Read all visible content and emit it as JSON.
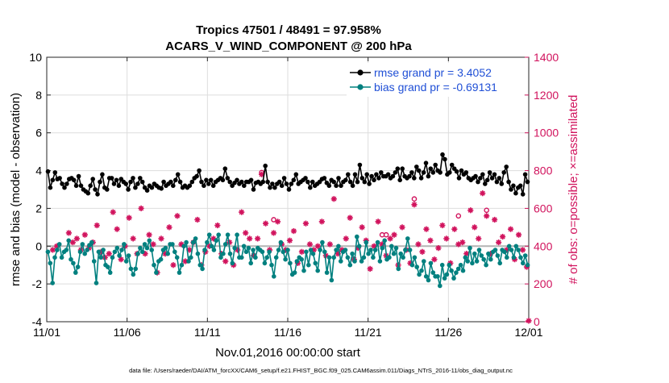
{
  "chart_data": {
    "type": "line",
    "title": "Tropics 47501 / 48491 = 97.958%",
    "subtitle": "ACARS_V_WIND_COMPONENT @ 200 hPa",
    "xlabel": "Nov.01,2016 00:00:00 start",
    "ylabel": "rmse and bias (model - observation)",
    "ylabel_right": "# of obs: o=possible; ×=assimilated",
    "footer": "data file: /Users/raeder/DAI/ATM_forcXX/CAM6_setup/f.e21.FHIST_BGC.f09_025.CAM6assim.011/Diags_NTrS_2016-11/obs_diag_output.nc",
    "xlim": [
      0,
      30
    ],
    "ylim": [
      -4,
      10
    ],
    "ylim_right": [
      0,
      1400
    ],
    "x_ticks": [
      0,
      5,
      10,
      15,
      20,
      25,
      30
    ],
    "x_tick_labels": [
      "11/01",
      "11/06",
      "11/11",
      "11/16",
      "11/21",
      "11/26",
      "12/01"
    ],
    "y_ticks": [
      -4,
      -2,
      0,
      2,
      4,
      6,
      8,
      10
    ],
    "y_tick_labels": [
      "-4",
      "-2",
      "0",
      "2",
      "4",
      "6",
      "8",
      "10"
    ],
    "y_ticks_right": [
      0,
      200,
      400,
      600,
      800,
      1000,
      1200,
      1400
    ],
    "y_tick_labels_right": [
      "0",
      "200",
      "400",
      "600",
      "800",
      "1000",
      "1200",
      "1400"
    ],
    "colors": {
      "rmse": "#000000",
      "bias": "#00807f",
      "obs": "#d1135d",
      "zero": "#b4b4b4"
    },
    "legend": {
      "position": "top-right",
      "entries": [
        {
          "label": "rmse grand pr = 3.4052",
          "color": "#1f4fd6"
        },
        {
          "label": "bias grand pr = -0.69131",
          "color": "#1f4fd6"
        }
      ]
    },
    "series": [
      {
        "name": "rmse",
        "values": [
          3.95,
          3.1,
          3.5,
          3.9,
          3.55,
          3.6,
          3.3,
          3.1,
          3.3,
          3.55,
          3.6,
          3.5,
          3.2,
          3.7,
          3.2,
          3.0,
          2.9,
          2.8,
          3.2,
          3.55,
          3.0,
          2.75,
          3.4,
          3.8,
          3.1,
          3.0,
          3.6,
          3.6,
          3.3,
          3.5,
          3.2,
          3.55,
          3.4,
          3.3,
          3.0,
          3.4,
          3.6,
          3.1,
          3.3,
          3.6,
          3.4,
          3.1,
          2.95,
          3.2,
          3.1,
          3.3,
          3.2,
          3.1,
          3.05,
          3.4,
          3.2,
          3.3,
          3.4,
          3.2,
          3.5,
          3.8,
          3.4,
          3.1,
          3.2,
          3.1,
          3.2,
          3.4,
          3.6,
          3.7,
          4.0,
          3.4,
          3.2,
          3.5,
          3.3,
          3.5,
          3.2,
          3.4,
          3.5,
          3.6,
          3.5,
          4.1,
          3.6,
          3.4,
          3.2,
          3.35,
          3.5,
          3.3,
          3.4,
          3.2,
          3.4,
          3.4,
          3.5,
          3.0,
          3.35,
          3.4,
          3.3,
          3.4,
          4.25,
          3.4,
          3.1,
          3.3,
          3.1,
          3.3,
          3.4,
          3.2,
          3.6,
          3.3,
          3.0,
          3.3,
          3.5,
          3.8,
          3.3,
          3.4,
          3.5,
          3.6,
          3.4,
          3.1,
          3.4,
          3.2,
          3.3,
          3.4,
          3.55,
          3.6,
          3.35,
          3.2,
          3.5,
          3.4,
          3.2,
          3.6,
          3.2,
          3.4,
          3.5,
          3.8,
          3.4,
          3.2,
          3.8,
          3.4,
          4.3,
          3.6,
          3.4,
          3.8,
          3.3,
          3.7,
          3.5,
          3.8,
          3.6,
          3.9,
          3.7,
          3.7,
          3.8,
          3.6,
          3.7,
          3.9,
          4.1,
          3.5,
          4.1,
          3.7,
          3.6,
          3.7,
          3.9,
          3.6,
          4.2,
          4.0,
          3.6,
          3.9,
          4.4,
          3.7,
          4.1,
          3.9,
          4.3,
          4.0,
          3.9,
          4.85,
          4.6,
          3.8,
          3.9,
          4.3,
          4.1,
          3.95,
          3.6,
          4.0,
          3.8,
          3.9,
          3.6,
          3.5,
          3.6,
          3.7,
          3.4,
          3.6,
          3.8,
          3.3,
          3.5,
          3.9,
          3.6,
          3.8,
          3.4,
          3.6,
          3.3,
          3.9,
          4.2,
          3.4,
          3.0,
          3.2,
          2.8,
          3.1,
          3.2,
          2.75,
          3.8,
          3.4
        ]
      },
      {
        "name": "bias",
        "values": [
          -0.3,
          -0.9,
          -1.95,
          -0.6,
          -0.2,
          0.1,
          -0.6,
          -0.3,
          -0.2,
          0.3,
          -0.7,
          -0.9,
          -1.4,
          -1.1,
          -0.3,
          0.1,
          -0.4,
          -0.2,
          0.05,
          0.2,
          -0.8,
          -1.95,
          -0.3,
          -0.6,
          -0.2,
          -1.0,
          -1.1,
          -1.4,
          -0.6,
          -0.3,
          -0.1,
          -0.5,
          -0.2,
          0.1,
          -0.8,
          -0.5,
          -1.2,
          -1.5,
          -1.2,
          -0.4,
          -0.1,
          -0.3,
          0.1,
          -0.1,
          0.3,
          -0.2,
          -1.0,
          -1.4,
          -0.8,
          -0.7,
          -0.2,
          -0.1,
          -0.4,
          0.1,
          0.1,
          -0.3,
          -0.6,
          -1.4,
          -1.0,
          0.0,
          0.2,
          -0.8,
          -0.6,
          0.2,
          0.4,
          -0.4,
          -1.0,
          -1.2,
          -0.2,
          0.2,
          0.6,
          0.0,
          -0.2,
          0.3,
          0.6,
          -0.6,
          -0.4,
          0.1,
          0.6,
          -0.4,
          -0.9,
          -0.1,
          0.6,
          -0.6,
          -0.6,
          0.0,
          -0.3,
          -0.1,
          -0.9,
          -0.2,
          -0.6,
          -0.1,
          -0.2,
          -0.3,
          -0.9,
          -0.6,
          -0.3,
          -1.0,
          -1.6,
          -0.6,
          -0.2,
          0.2,
          -0.3,
          -0.7,
          -0.2,
          -0.9,
          -1.5,
          -1.4,
          -0.8,
          -0.6,
          -0.7,
          -1.3,
          -0.3,
          -1.0,
          -0.2,
          -0.4,
          -0.9,
          -1.3,
          -0.2,
          0.2,
          -0.3,
          -1.4,
          -0.6,
          -1.8,
          -0.6,
          -0.2,
          0.0,
          -0.8,
          -0.3,
          -0.2,
          -0.6,
          -1.0,
          -0.4,
          -0.8,
          0.5,
          0.0,
          -0.8,
          -0.6,
          0.2,
          -0.4,
          -0.2,
          -0.6,
          -0.2,
          0.2,
          -0.8,
          -0.1,
          0.3,
          -0.7,
          -0.6,
          0.0,
          -0.4,
          -0.1,
          -1.2,
          -0.4,
          -0.6,
          -0.2,
          0.4,
          -0.2,
          -1.0,
          -0.6,
          -1.1,
          -1.5,
          -1.3,
          -0.8,
          -1.6,
          -1.8,
          -0.9,
          -1.4,
          -1.6,
          -1.6,
          -2.1,
          -1.0,
          -1.7,
          -1.5,
          -1.0,
          -1.3,
          -1.7,
          -1.4,
          -1.2,
          -1.0,
          -1.3,
          -0.6,
          -0.8,
          -0.1,
          -0.9,
          -0.4,
          -0.8,
          -0.2,
          -0.5,
          -0.7,
          -1.0,
          -0.4,
          -0.7,
          -0.3,
          -0.2,
          -0.5,
          -0.9,
          -0.2,
          -0.3,
          -0.6,
          0.0,
          -0.2,
          -0.6,
          0.0,
          -0.2,
          -0.6,
          -0.9,
          -0.5,
          -1.0
        ]
      },
      {
        "name": "obs_assimilated",
        "points": [
          [
            0.375,
            380
          ],
          [
            0.625,
            400
          ],
          [
            1.375,
            470
          ],
          [
            1.625,
            420
          ],
          [
            1.875,
            440
          ],
          [
            2.125,
            380
          ],
          [
            2.375,
            460
          ],
          [
            2.625,
            390
          ],
          [
            2.875,
            420
          ],
          [
            3.125,
            510
          ],
          [
            3.375,
            370
          ],
          [
            3.625,
            340
          ],
          [
            3.875,
            360
          ],
          [
            4.125,
            580
          ],
          [
            4.375,
            490
          ],
          [
            4.625,
            330
          ],
          [
            4.875,
            400
          ],
          [
            5.125,
            550
          ],
          [
            5.375,
            440
          ],
          [
            5.625,
            360
          ],
          [
            5.875,
            600
          ],
          [
            6.125,
            360
          ],
          [
            6.375,
            460
          ],
          [
            6.625,
            410
          ],
          [
            6.875,
            260
          ],
          [
            7.125,
            440
          ],
          [
            7.375,
            360
          ],
          [
            7.625,
            500
          ],
          [
            7.875,
            300
          ],
          [
            8.125,
            560
          ],
          [
            8.375,
            410
          ],
          [
            8.625,
            320
          ],
          [
            8.875,
            380
          ],
          [
            9.125,
            420
          ],
          [
            9.375,
            540
          ],
          [
            9.625,
            300
          ],
          [
            9.875,
            370
          ],
          [
            10.125,
            400
          ],
          [
            10.375,
            440
          ],
          [
            10.625,
            510
          ],
          [
            10.875,
            360
          ],
          [
            11.125,
            320
          ],
          [
            11.375,
            420
          ],
          [
            11.625,
            300
          ],
          [
            11.875,
            380
          ],
          [
            12.125,
            580
          ],
          [
            12.375,
            470
          ],
          [
            12.625,
            440
          ],
          [
            12.875,
            350
          ],
          [
            13.125,
            440
          ],
          [
            13.375,
            780
          ],
          [
            13.625,
            520
          ],
          [
            13.875,
            380
          ],
          [
            14.125,
            470
          ],
          [
            14.375,
            530
          ],
          [
            14.625,
            410
          ],
          [
            14.875,
            380
          ],
          [
            15.125,
            430
          ],
          [
            15.375,
            480
          ],
          [
            15.625,
            310
          ],
          [
            15.875,
            370
          ],
          [
            16.125,
            520
          ],
          [
            16.375,
            410
          ],
          [
            16.625,
            380
          ],
          [
            16.875,
            400
          ],
          [
            17.125,
            530
          ],
          [
            17.375,
            350
          ],
          [
            17.625,
            410
          ],
          [
            17.875,
            650
          ],
          [
            18.125,
            360
          ],
          [
            18.375,
            380
          ],
          [
            18.625,
            440
          ],
          [
            18.875,
            550
          ],
          [
            19.125,
            330
          ],
          [
            19.375,
            390
          ],
          [
            19.625,
            500
          ],
          [
            19.875,
            430
          ],
          [
            20.125,
            280
          ],
          [
            20.375,
            400
          ],
          [
            20.625,
            530
          ],
          [
            20.875,
            410
          ],
          [
            21.125,
            350
          ],
          [
            21.375,
            440
          ],
          [
            21.625,
            460
          ],
          [
            21.875,
            300
          ],
          [
            22.125,
            500
          ],
          [
            22.375,
            380
          ],
          [
            22.625,
            310
          ],
          [
            22.875,
            620
          ],
          [
            23.125,
            410
          ],
          [
            23.375,
            370
          ],
          [
            23.625,
            490
          ],
          [
            23.875,
            430
          ],
          [
            24.125,
            330
          ],
          [
            24.375,
            390
          ],
          [
            24.625,
            510
          ],
          [
            24.875,
            440
          ],
          [
            25.125,
            310
          ],
          [
            25.375,
            490
          ],
          [
            25.625,
            410
          ],
          [
            25.875,
            420
          ],
          [
            26.125,
            360
          ],
          [
            26.375,
            590
          ],
          [
            26.625,
            500
          ],
          [
            26.875,
            440
          ],
          [
            27.125,
            680
          ],
          [
            27.375,
            560
          ],
          [
            27.625,
            360
          ],
          [
            27.875,
            540
          ],
          [
            28.125,
            420
          ],
          [
            28.375,
            450
          ],
          [
            28.625,
            380
          ],
          [
            28.875,
            490
          ],
          [
            29.125,
            330
          ],
          [
            29.375,
            460
          ],
          [
            29.625,
            380
          ],
          [
            29.875,
            290
          ],
          [
            30.0,
            5
          ]
        ]
      },
      {
        "name": "obs_possible",
        "points": [
          [
            13.375,
            790
          ],
          [
            14.125,
            540
          ],
          [
            20.875,
            460
          ],
          [
            21.125,
            460
          ],
          [
            22.875,
            650
          ],
          [
            25.625,
            560
          ],
          [
            27.375,
            590
          ]
        ]
      }
    ]
  }
}
